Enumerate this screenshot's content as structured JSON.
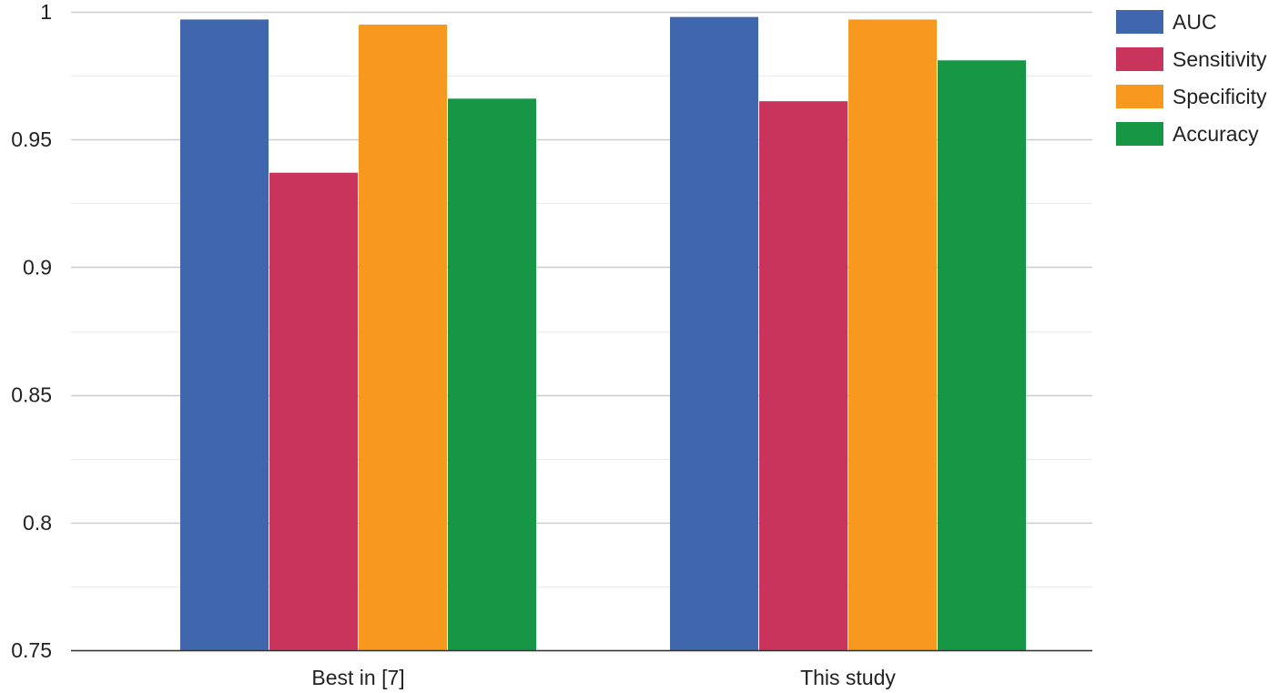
{
  "chart_data": {
    "type": "bar",
    "categories": [
      "Best in [7]",
      "This study"
    ],
    "series": [
      {
        "name": "AUC",
        "color": "#4066ad",
        "values": [
          0.997,
          0.998
        ]
      },
      {
        "name": "Sensitivity",
        "color": "#c8345c",
        "values": [
          0.937,
          0.965
        ]
      },
      {
        "name": "Specificity",
        "color": "#f7981f",
        "values": [
          0.995,
          0.997
        ]
      },
      {
        "name": "Accuracy",
        "color": "#179645",
        "values": [
          0.966,
          0.981
        ]
      }
    ],
    "ylim": [
      0.75,
      1.0
    ],
    "yticks": [
      "0.75",
      "0.8",
      "0.85",
      "0.9",
      "0.95",
      "1"
    ],
    "ytick_values": [
      0.75,
      0.8,
      0.85,
      0.9,
      0.95,
      1.0
    ],
    "minor_grid_values": [
      0.775,
      0.825,
      0.875,
      0.925,
      0.975
    ],
    "grid": true,
    "legend_position": "right",
    "title": "",
    "xlabel": "",
    "ylabel": ""
  }
}
